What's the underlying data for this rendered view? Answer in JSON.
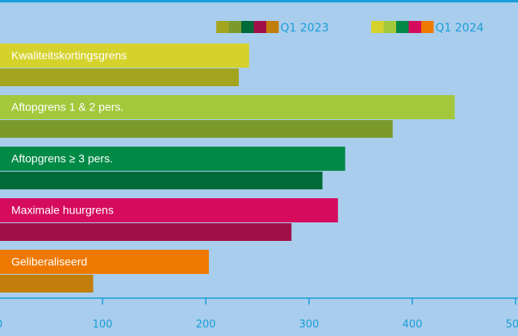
{
  "chart_data": {
    "type": "bar",
    "orientation": "horizontal",
    "categories": [
      "Kwaliteitskortingsgrens",
      "Aftopgrens 1 & 2 pers.",
      "Aftopgrens ≥ 3 pers.",
      "Maximale huurgrens",
      "Geliberaliseerd"
    ],
    "series": [
      {
        "name": "Q1 2024",
        "colors": [
          "#d5d22b",
          "#a3c83c",
          "#008a46",
          "#d50b5e",
          "#ef7900"
        ],
        "values": [
          242,
          441,
          335,
          328,
          203
        ]
      },
      {
        "name": "Q1 2023",
        "colors": [
          "#a4a51e",
          "#7b9a2b",
          "#006a38",
          "#a10f48",
          "#c27e0a"
        ],
        "values": [
          232,
          381,
          313,
          283,
          91
        ]
      }
    ],
    "legend_order": [
      1,
      0
    ],
    "xlim": [
      0,
      500
    ],
    "xticks": [
      0,
      100,
      200,
      300,
      400,
      500
    ],
    "axis_color": "#1a9ed9"
  }
}
